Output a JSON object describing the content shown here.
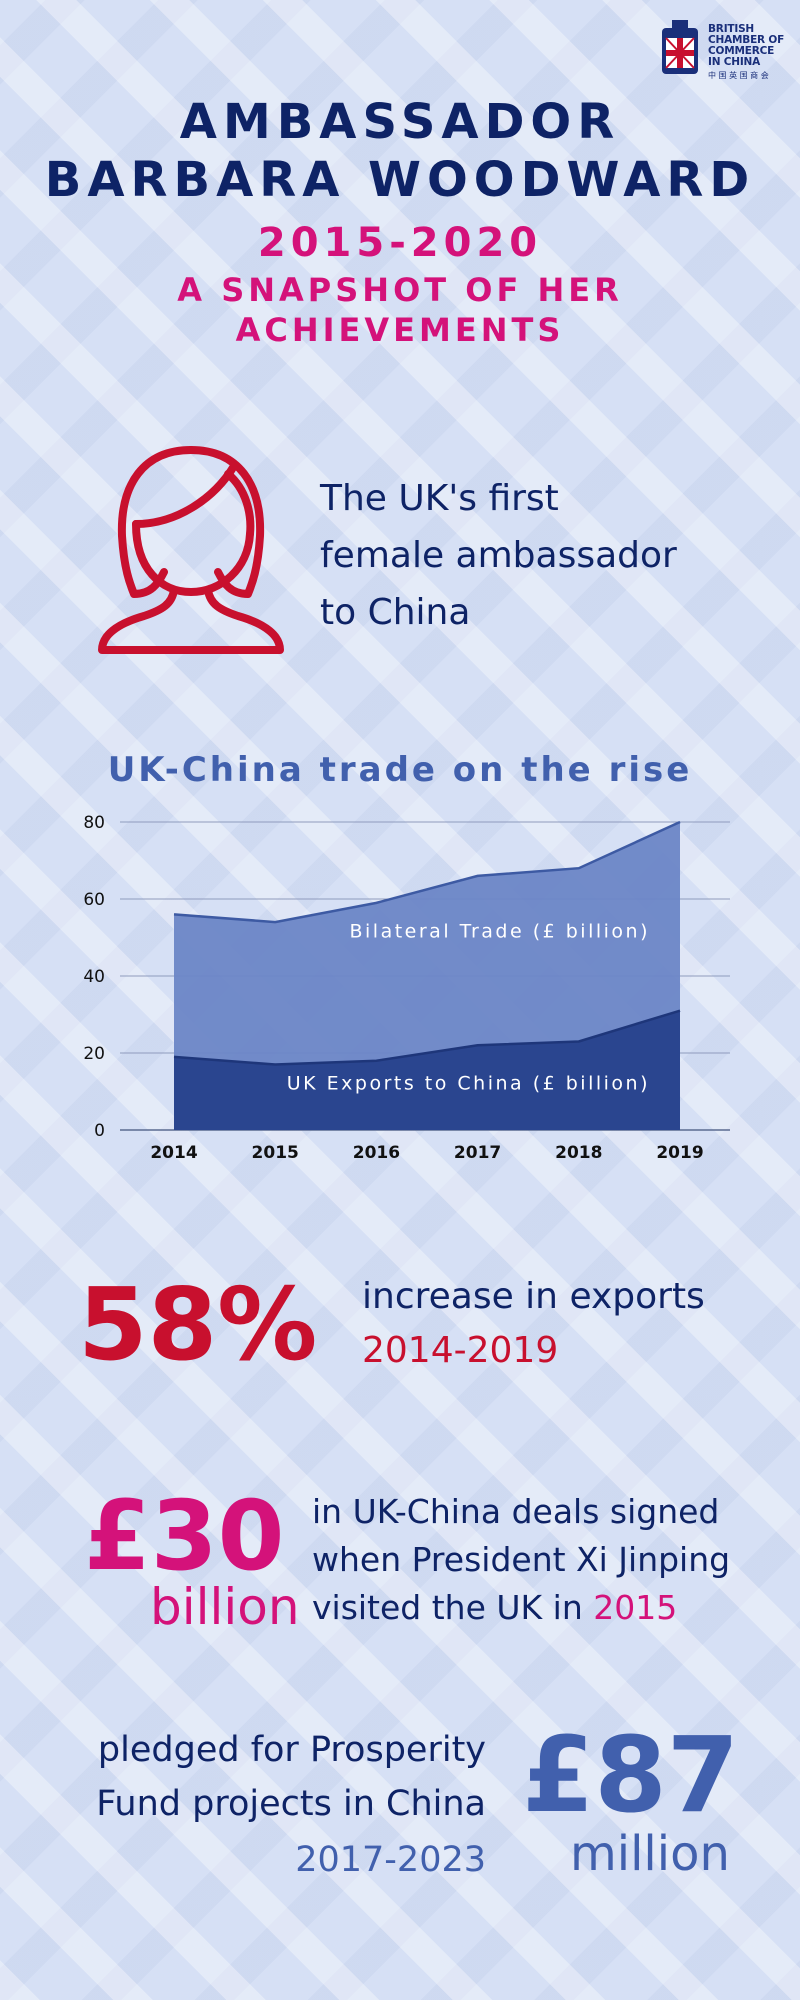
{
  "logo": {
    "lines": [
      "BRITISH",
      "CHAMBER OF",
      "COMMERCE",
      "IN CHINA"
    ],
    "chinese": "中 国 英 国 商 会"
  },
  "header": {
    "title_line1": "AMBASSADOR",
    "title_line2": "BARBARA WOODWARD",
    "years": "2015-2020",
    "subtitle": "A SNAPSHOT OF HER ACHIEVEMENTS"
  },
  "first_female": {
    "icon": "female-person-icon",
    "text_lines": [
      "The UK's first",
      "female ambassador",
      "to China"
    ]
  },
  "chart_title": "UK-China trade on the rise",
  "chart_data": {
    "type": "area",
    "x": [
      "2014",
      "2015",
      "2016",
      "2017",
      "2018",
      "2019"
    ],
    "series": [
      {
        "name": "Bilateral Trade (£ billion)",
        "values": [
          56,
          54,
          59,
          66,
          68,
          80
        ],
        "color": "#6b86c6"
      },
      {
        "name": "UK Exports to China (£ billion)",
        "values": [
          19,
          17,
          18,
          22,
          23,
          31
        ],
        "color": "#2a458f"
      }
    ],
    "yticks": [
      0,
      20,
      40,
      60,
      80
    ],
    "ylim": [
      0,
      80
    ],
    "grid": true,
    "legend": "inline-labels"
  },
  "stats": {
    "exports": {
      "value": "58%",
      "line1": "increase in exports",
      "line2": "2014-2019"
    },
    "deals": {
      "value": "£30",
      "unit": "billion",
      "line1": "in UK-China deals signed",
      "line2": "when President Xi Jinping",
      "line3_prefix": "visited the UK in ",
      "line3_year": "2015"
    },
    "prosperity": {
      "value": "£87",
      "unit": "million",
      "line1": "pledged for Prosperity",
      "line2": "Fund projects in China",
      "line3": "2017-2023"
    }
  },
  "colors": {
    "navy": "#0e2366",
    "pink": "#d4127a",
    "crimson": "#c8102e",
    "blue": "#4160ad",
    "background": "#d6e0f5"
  }
}
